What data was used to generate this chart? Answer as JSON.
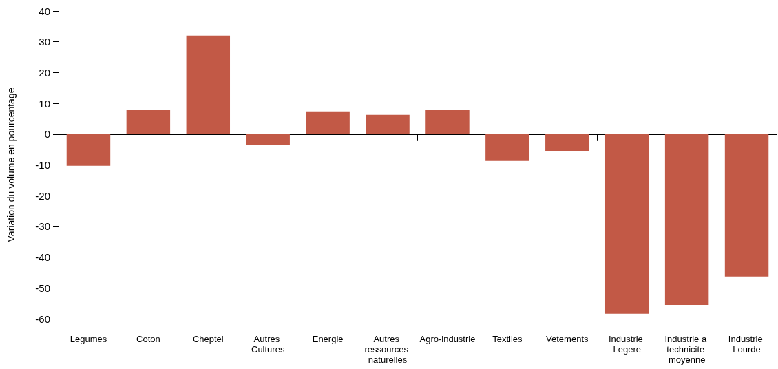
{
  "chart_data": {
    "type": "bar",
    "ylabel": "Variation du volume en pourcentage",
    "categories": [
      "Legumes",
      "Coton",
      "Cheptel",
      "Autres Cultures",
      "Energie",
      "Autres ressources naturelles",
      "Agro-industrie",
      "Textiles",
      "Vetements",
      "Industrie Legere",
      "Industrie a technicite moyenne",
      "Industrie Lourde"
    ],
    "values": [
      -10.3,
      7.8,
      32,
      -3.4,
      7.4,
      6.3,
      7.8,
      -8.7,
      -5.4,
      -58.4,
      -55.5,
      -46.3
    ],
    "color": "#c25946",
    "ylim": [
      -60,
      40
    ],
    "yticks": [
      -60,
      -50,
      -40,
      -30,
      -20,
      -10,
      0,
      10,
      20,
      30,
      40
    ]
  }
}
